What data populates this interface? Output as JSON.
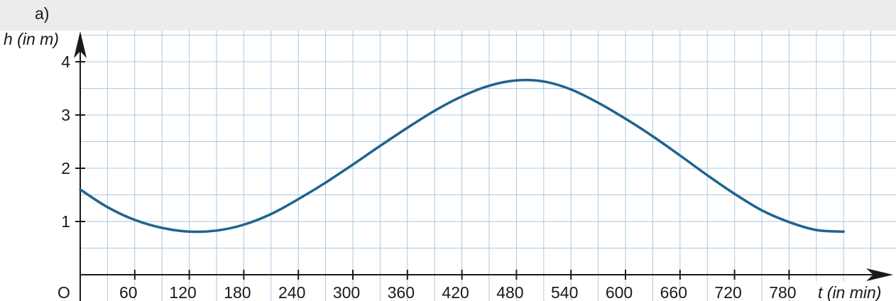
{
  "panel_label": "a)",
  "chart_data": {
    "type": "line",
    "title": "",
    "xlabel": "t (in min)",
    "ylabel": "h (in m)",
    "origin_label": "O",
    "xlim": [
      0,
      840
    ],
    "ylim": [
      0,
      4
    ],
    "x_ticks": [
      60,
      120,
      180,
      240,
      300,
      360,
      420,
      480,
      540,
      600,
      660,
      720,
      780
    ],
    "x_tick_labels": [
      "60",
      "120",
      "180",
      "240",
      "300",
      "360",
      "420",
      "480",
      "540",
      "600",
      "660",
      "720",
      "780"
    ],
    "y_ticks": [
      1,
      2,
      3,
      4
    ],
    "y_tick_labels": [
      "1",
      "2",
      "3",
      "4"
    ],
    "grid": true,
    "grid_step_x": 30,
    "grid_step_y": 0.5,
    "line_color": "#1f6390",
    "grid_color": "#a9c8e0",
    "series": [
      {
        "x": [
          0,
          30,
          60,
          90,
          120,
          150,
          180,
          210,
          240,
          270,
          300,
          330,
          360,
          390,
          420,
          450,
          480,
          510,
          540,
          570,
          600,
          630,
          660,
          690,
          720,
          750,
          780,
          810,
          840
        ],
        "values": [
          1.6,
          1.27,
          1.03,
          0.88,
          0.81,
          0.83,
          0.94,
          1.14,
          1.42,
          1.73,
          2.07,
          2.42,
          2.76,
          3.08,
          3.35,
          3.55,
          3.65,
          3.63,
          3.48,
          3.23,
          2.93,
          2.6,
          2.24,
          1.87,
          1.52,
          1.21,
          0.99,
          0.84,
          0.81
        ]
      }
    ]
  }
}
